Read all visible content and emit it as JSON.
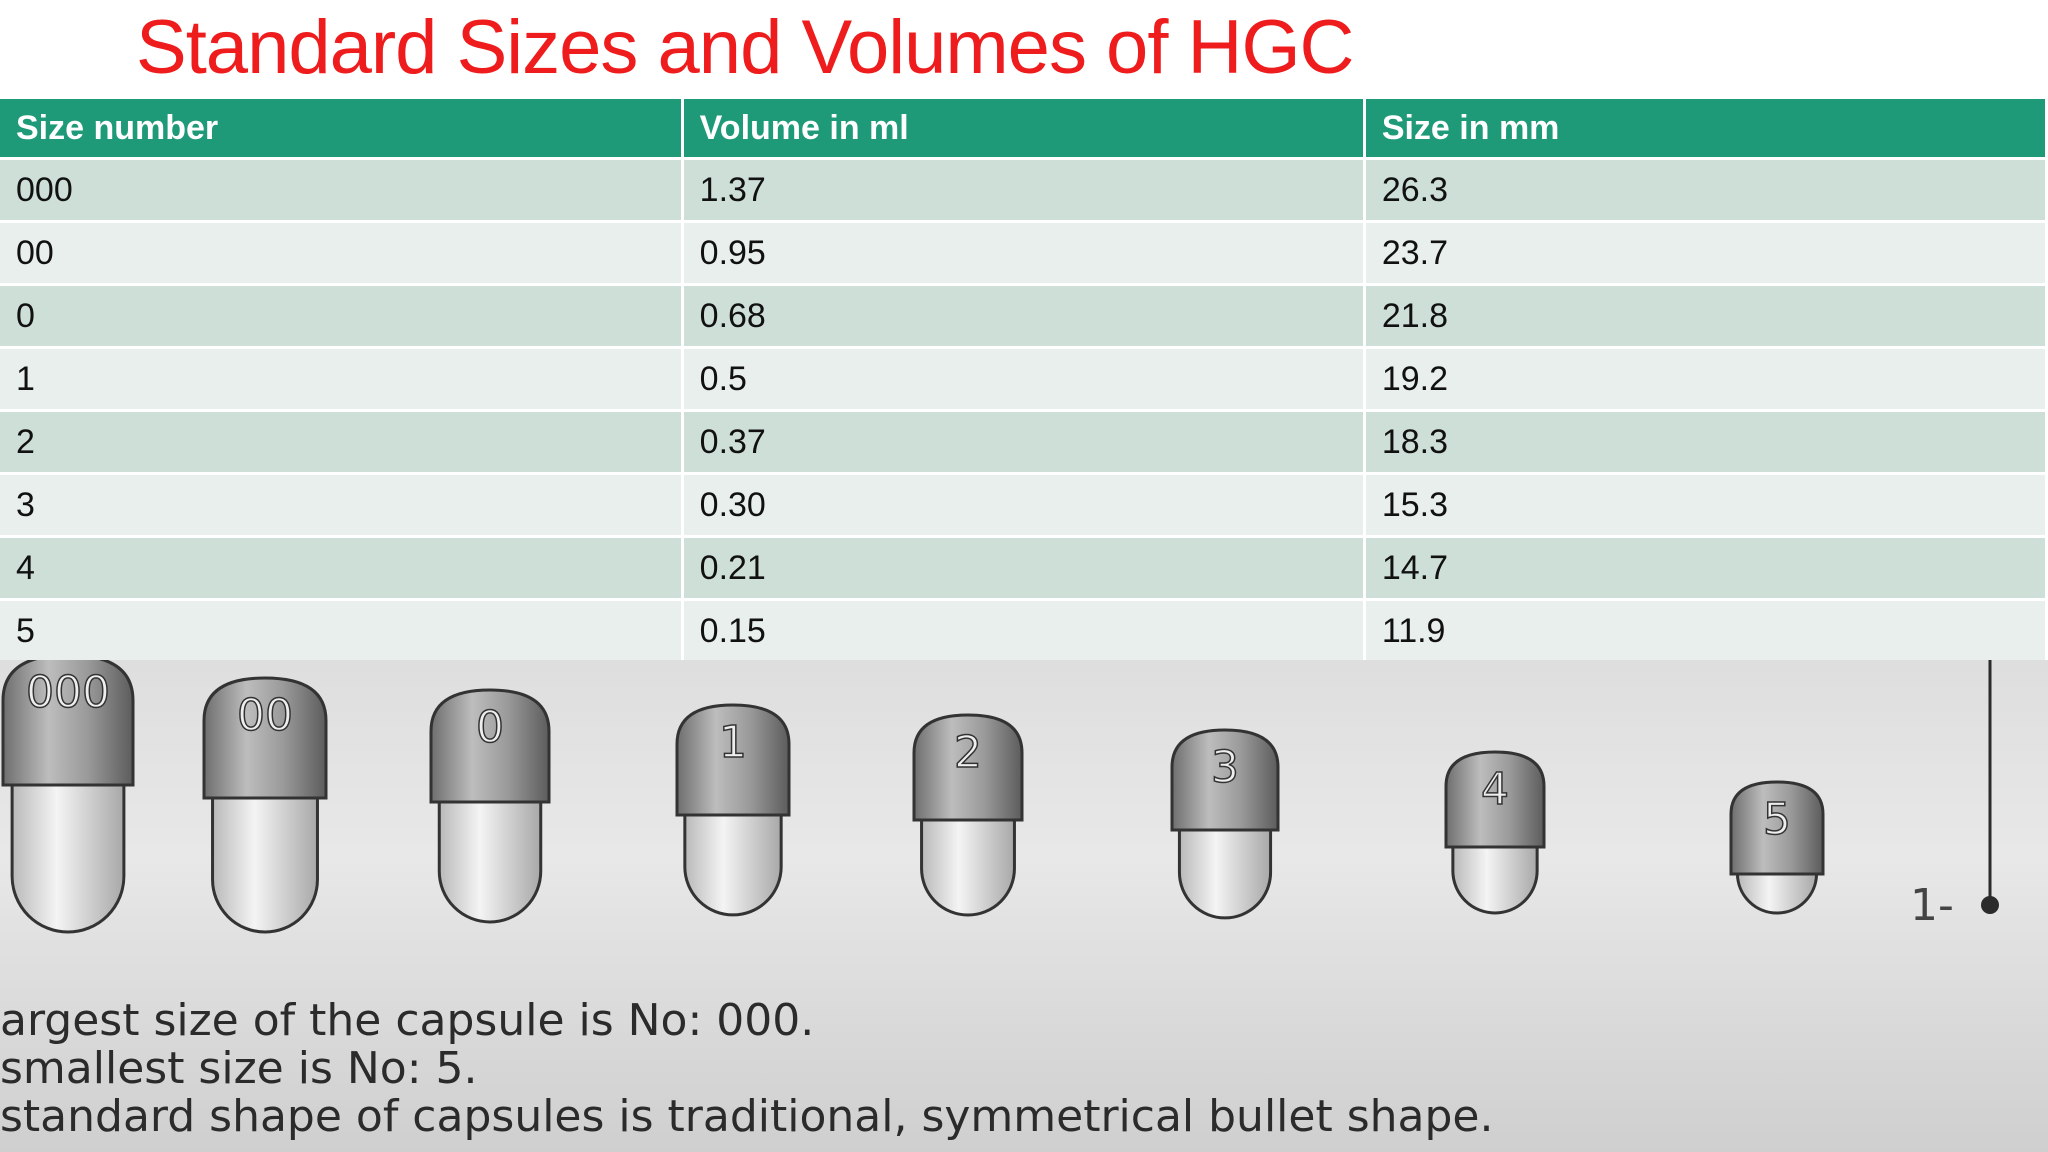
{
  "title": "Standard Sizes and Volumes of HGC",
  "table": {
    "headers": [
      "Size number",
      "Volume in ml",
      "Size in mm"
    ],
    "rows": [
      [
        "000",
        "1.37",
        "26.3"
      ],
      [
        "00",
        "0.95",
        "23.7"
      ],
      [
        "0",
        "0.68",
        "21.8"
      ],
      [
        "1",
        "0.5",
        "19.2"
      ],
      [
        "2",
        "0.37",
        "18.3"
      ],
      [
        "3",
        "0.30",
        "15.3"
      ],
      [
        "4",
        "0.21",
        "14.7"
      ],
      [
        "5",
        "0.15",
        "11.9"
      ]
    ]
  },
  "photo": {
    "capsule_labels": [
      "000",
      "00",
      "0",
      "1",
      "2",
      "3",
      "4",
      "5"
    ],
    "scale_label": "1-",
    "lines": [
      "argest size of the capsule is No: 000.",
      "smallest size is No: 5.",
      "standard shape of capsules is traditional, symmetrical bullet shape."
    ]
  },
  "colors": {
    "title": "#ee1c1c",
    "header_bg": "#1f9a78",
    "row_odd": "#cddfd7",
    "row_even": "#e8efec"
  }
}
